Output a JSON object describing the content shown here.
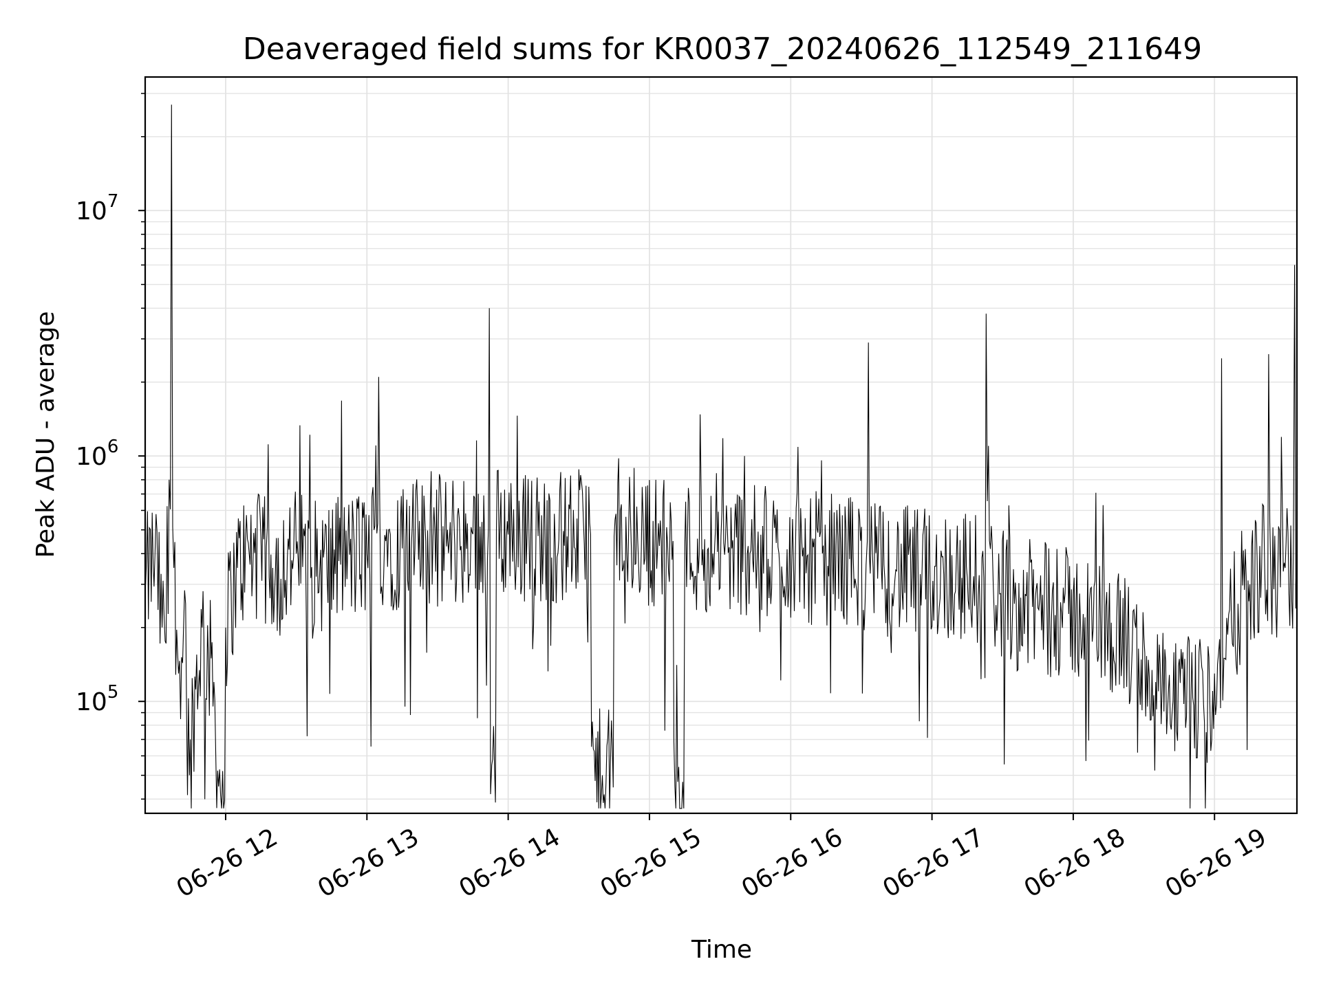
{
  "chart_data": {
    "type": "line",
    "title": "Deaveraged field sums for KR0037_20240626_112549_211649",
    "xlabel": "Time",
    "ylabel": "Peak ADU - average",
    "x_axis": {
      "kind": "datetime",
      "range": [
        "2024-06-26T11:25:49",
        "2024-06-26T19:35:00"
      ],
      "tick_labels": [
        "06-26 12",
        "06-26 13",
        "06-26 14",
        "06-26 15",
        "06-26 16",
        "06-26 17",
        "06-26 18",
        "06-26 19"
      ],
      "tick_hours": [
        12,
        13,
        14,
        15,
        16,
        17,
        18,
        19
      ]
    },
    "y_axis": {
      "scale": "log",
      "ylim": [
        35000,
        35000000
      ],
      "tick_base": "10",
      "tick_exponents": [
        "5",
        "6",
        "7"
      ],
      "tick_values": [
        100000,
        1000000,
        10000000
      ]
    },
    "grid": true,
    "line_color": "#000000",
    "series": [
      {
        "points": [
          [
            "11:26",
            300000
          ],
          [
            "11:30",
            400000
          ],
          [
            "11:33",
            200000
          ],
          [
            "11:36",
            800000
          ],
          [
            "11:37",
            27000000
          ],
          [
            "11:38",
            350000
          ],
          [
            "11:40",
            130000
          ],
          [
            "11:43",
            250000
          ],
          [
            "11:45",
            70000
          ],
          [
            "11:50",
            200000
          ],
          [
            "11:55",
            120000
          ],
          [
            "11:57",
            45000
          ],
          [
            "12:00",
            200000
          ],
          [
            "12:05",
            350000
          ],
          [
            "12:10",
            400000
          ],
          [
            "12:20",
            350000
          ],
          [
            "12:30",
            400000
          ],
          [
            "12:40",
            350000
          ],
          [
            "12:50",
            380000
          ],
          [
            "13:00",
            400000
          ],
          [
            "13:03",
            500000
          ],
          [
            "13:05",
            2100000
          ],
          [
            "13:08",
            450000
          ],
          [
            "13:15",
            420000
          ],
          [
            "13:25",
            450000
          ],
          [
            "13:35",
            450000
          ],
          [
            "13:45",
            480000
          ],
          [
            "13:50",
            450000
          ],
          [
            "13:52",
            4000000
          ],
          [
            "13:53",
            55000
          ],
          [
            "13:55",
            500000
          ],
          [
            "14:05",
            480000
          ],
          [
            "14:15",
            460000
          ],
          [
            "14:25",
            470000
          ],
          [
            "14:35",
            480000
          ],
          [
            "14:40",
            50000
          ],
          [
            "14:45",
            470000
          ],
          [
            "14:55",
            460000
          ],
          [
            "15:05",
            450000
          ],
          [
            "15:10",
            450000
          ],
          [
            "15:12",
            47000
          ],
          [
            "15:15",
            430000
          ],
          [
            "15:25",
            420000
          ],
          [
            "15:35",
            420000
          ],
          [
            "15:45",
            410000
          ],
          [
            "15:55",
            400000
          ],
          [
            "16:05",
            390000
          ],
          [
            "16:15",
            380000
          ],
          [
            "16:25",
            380000
          ],
          [
            "16:32",
            360000
          ],
          [
            "16:33",
            2900000
          ],
          [
            "16:35",
            350000
          ],
          [
            "16:45",
            340000
          ],
          [
            "16:55",
            330000
          ],
          [
            "17:05",
            330000
          ],
          [
            "17:15",
            320000
          ],
          [
            "17:22",
            320000
          ],
          [
            "17:23",
            3800000
          ],
          [
            "17:24",
            1100000
          ],
          [
            "17:26",
            300000
          ],
          [
            "17:35",
            250000
          ],
          [
            "17:45",
            240000
          ],
          [
            "17:55",
            230000
          ],
          [
            "18:05",
            220000
          ],
          [
            "18:15",
            200000
          ],
          [
            "18:25",
            160000
          ],
          [
            "18:35",
            120000
          ],
          [
            "18:42",
            90000
          ],
          [
            "18:50",
            100000
          ],
          [
            "18:58",
            100000
          ],
          [
            "19:00",
            130000
          ],
          [
            "19:03",
            2500000
          ],
          [
            "19:04",
            150000
          ],
          [
            "19:10",
            250000
          ],
          [
            "19:15",
            300000
          ],
          [
            "19:20",
            350000
          ],
          [
            "19:23",
            2600000
          ],
          [
            "19:24",
            300000
          ],
          [
            "19:30",
            350000
          ],
          [
            "19:34",
            6000000
          ],
          [
            "19:35",
            350000
          ]
        ]
      }
    ]
  }
}
